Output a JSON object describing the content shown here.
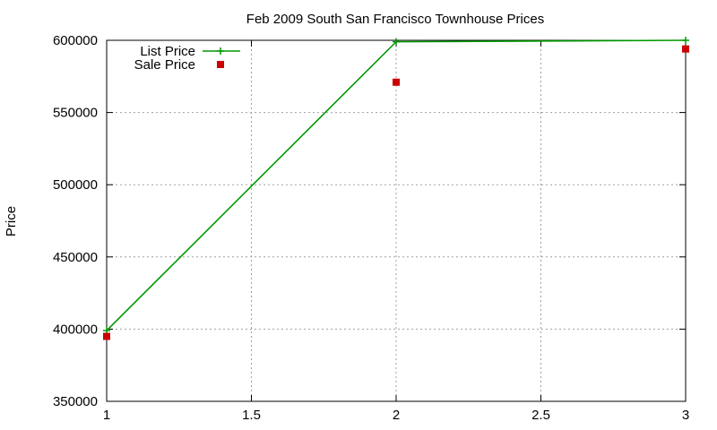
{
  "chart_data": {
    "type": "line",
    "title": "Feb 2009 South San Francisco Townhouse Prices",
    "xlabel": "",
    "ylabel": "Price",
    "xlim": [
      1,
      3
    ],
    "ylim": [
      350000,
      600000
    ],
    "x_ticks": [
      1,
      1.5,
      2,
      2.5,
      3
    ],
    "x_tick_labels": [
      "1",
      "1.5",
      "2",
      "2.5",
      "3"
    ],
    "y_ticks": [
      350000,
      400000,
      450000,
      500000,
      550000,
      600000
    ],
    "y_tick_labels": [
      "350000",
      "400000",
      "450000",
      "500000",
      "550000",
      "600000"
    ],
    "grid": true,
    "legend_position": "top-left",
    "series": [
      {
        "name": "List Price",
        "style": "lines+points",
        "marker": "plus",
        "color": "#009900",
        "x": [
          1,
          2,
          3
        ],
        "y": [
          399000,
          599000,
          600000
        ]
      },
      {
        "name": "Sale Price",
        "style": "points",
        "marker": "square",
        "color": "#cc0000",
        "x": [
          1,
          2,
          3
        ],
        "y": [
          395000,
          571000,
          594000
        ]
      }
    ]
  }
}
